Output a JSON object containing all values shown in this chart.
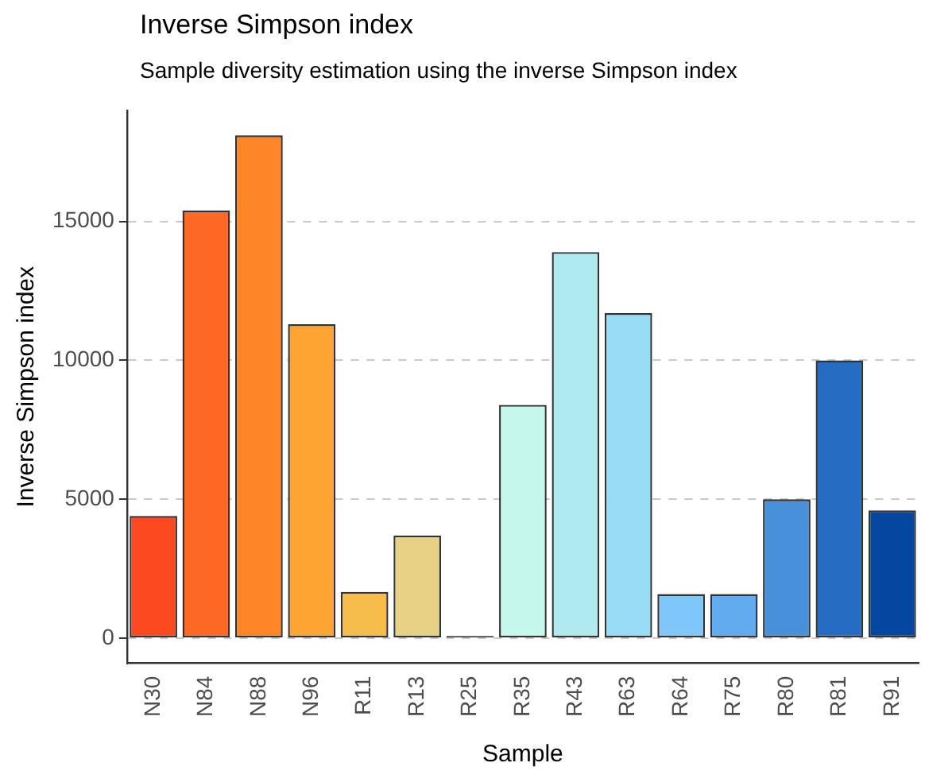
{
  "chart_data": {
    "type": "bar",
    "title": "Inverse Simpson index",
    "subtitle": "Sample diversity estimation using the inverse Simpson index",
    "xlabel": "Sample",
    "ylabel": "Inverse Simpson index",
    "categories": [
      "N30",
      "N84",
      "N88",
      "N96",
      "R11",
      "R13",
      "R25",
      "R35",
      "R43",
      "R63",
      "R64",
      "R75",
      "R80",
      "R81",
      "R91"
    ],
    "values": [
      4400,
      15400,
      18100,
      11300,
      1670,
      3700,
      80,
      8400,
      13900,
      11700,
      1590,
      1590,
      5000,
      10000,
      4600
    ],
    "colors": [
      "#fc4a20",
      "#fd6925",
      "#fe8626",
      "#fea432",
      "#f6bd4c",
      "#e6d282",
      "#333333",
      "#c5f8ea",
      "#aeeaee",
      "#98dcf6",
      "#7fc7fa",
      "#62abef",
      "#4790da",
      "#266cc2",
      "#0447a0"
    ],
    "ylim": [
      -900,
      19000
    ],
    "yticks": [
      0,
      5000,
      10000,
      15000
    ],
    "grid": "y",
    "legend": false
  }
}
